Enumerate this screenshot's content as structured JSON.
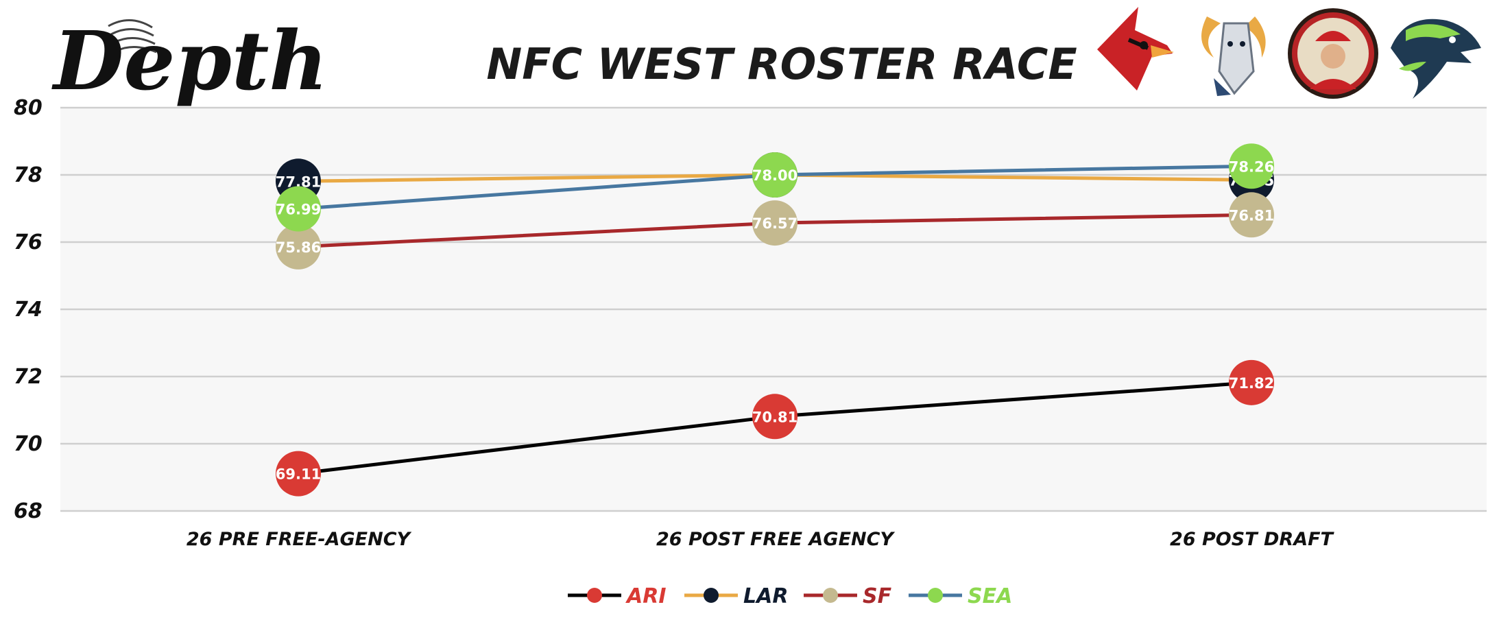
{
  "brand": {
    "name": "Depth"
  },
  "chart_data": {
    "type": "line",
    "title": "NFC WEST ROSTER RACE",
    "categories": [
      "26 PRE FREE-AGENCY",
      "26 POST FREE AGENCY",
      "26 POST DRAFT"
    ],
    "ylim": [
      68,
      80
    ],
    "yticks": [
      68,
      70,
      72,
      74,
      76,
      78,
      80
    ],
    "grid": true,
    "legend_position": "bottom",
    "series": [
      {
        "name": "ARI",
        "values": [
          69.11,
          70.81,
          71.82
        ],
        "line_color": "#000000",
        "marker_color": "#d93a34",
        "label_color": "#d93a34",
        "labels": [
          "69.11",
          "70.81",
          "71.82"
        ]
      },
      {
        "name": "LAR",
        "values": [
          77.81,
          78.0,
          77.85
        ],
        "line_color": "#e9a944",
        "marker_color": "#0f1b2e",
        "label_color": "#0f1b2e",
        "labels": [
          "77.81",
          "78.00",
          "77.85"
        ]
      },
      {
        "name": "SF",
        "values": [
          75.86,
          76.57,
          76.81
        ],
        "line_color": "#a8282b",
        "marker_color": "#c4b98f",
        "label_color": "#a8282b",
        "labels": [
          "75.86",
          "76.57",
          "76.81"
        ]
      },
      {
        "name": "SEA",
        "values": [
          76.99,
          78.0,
          78.26
        ],
        "line_color": "#4777a0",
        "marker_color": "#8dd84f",
        "label_color": "#8dd84f",
        "labels": [
          "76.99",
          "78.00",
          "78.26"
        ]
      }
    ]
  },
  "logos": [
    {
      "team": "ARI",
      "icon": "cardinal-logo-icon"
    },
    {
      "team": "LAR",
      "icon": "ram-logo-icon"
    },
    {
      "team": "SF",
      "icon": "miner-logo-icon"
    },
    {
      "team": "SEA",
      "icon": "seahawk-logo-icon"
    }
  ]
}
